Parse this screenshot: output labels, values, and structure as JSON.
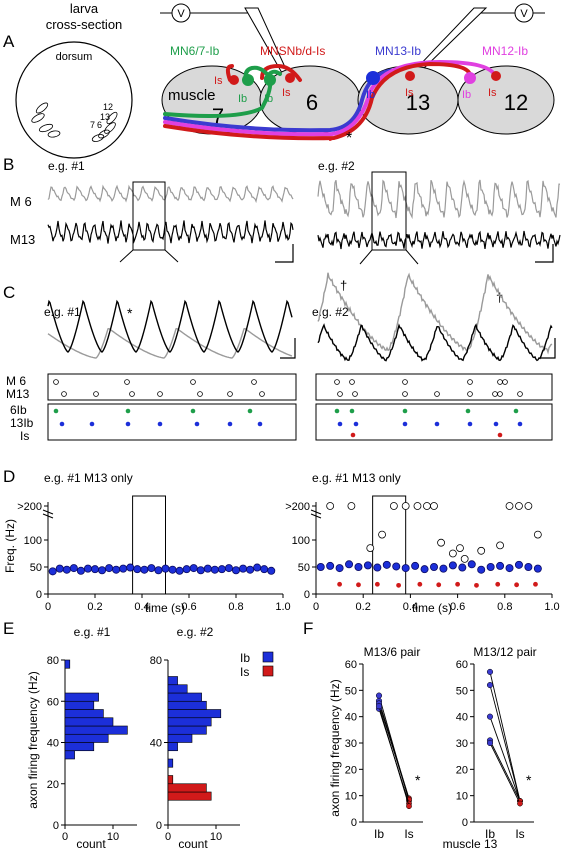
{
  "panels": {
    "A": "A",
    "B": "B",
    "C": "C",
    "D": "D",
    "E": "E",
    "F": "F"
  },
  "colors": {
    "ib": "#1c2fd9",
    "is": "#d11a1a",
    "mn67": "#1e9e4a",
    "mnsnb": "#d11a1a",
    "mn13": "#3b3bd0",
    "mn12": "#e040e0",
    "trace_gray": "#9a9a9a",
    "muscle": "#d9d9d9"
  },
  "panelA": {
    "larva_title_1": "larva",
    "larva_title_2": "cross-section",
    "dorsum": "dorsum",
    "larva_muscles": [
      "12",
      "13",
      "7",
      "6"
    ],
    "electrode": "V",
    "neurons": [
      {
        "label": "MN6/7-Ib",
        "color": "#1e9e4a"
      },
      {
        "label": "MNSNb/d-Is",
        "color": "#d11a1a"
      },
      {
        "label": "MN13-Ib",
        "color": "#3b3bd0"
      },
      {
        "label": "MN12-Ib",
        "color": "#e040e0"
      }
    ],
    "muscles": {
      "m7": "7",
      "m6": "6",
      "m13": "13",
      "m12": "12",
      "muscle_word": "muscle"
    },
    "terminals": {
      "is1": "Is",
      "ib7": "Ib",
      "ib6": "Ib",
      "is6": "Is",
      "ib13": "Ib",
      "is13": "Is",
      "ib12": "Ib",
      "is12": "Is"
    },
    "asterisk": "*"
  },
  "panelB": {
    "eg1": "e.g. #1",
    "eg2": "e.g. #2",
    "m6": "M  6",
    "m13": "M13"
  },
  "panelC": {
    "eg1": "e.g. #1",
    "eg2": "e.g. #2",
    "asterisk": "*",
    "dagger": "†",
    "rows1": [
      "M  6",
      "M13"
    ],
    "rows2": [
      "6Ib",
      "13Ib",
      "Is"
    ]
  },
  "panelD": {
    "left_title": "e.g. #1   M13 only",
    "right_title": "e.g. #1   M13 only",
    "ylabel": "Freq.  (Hz)",
    "xlabel": "time (s)",
    "yticks": [
      ">200",
      "100",
      "50",
      "0"
    ],
    "xticks": [
      "0",
      "0.2",
      "0.4",
      "0.6",
      "0.8",
      "1.0"
    ]
  },
  "panelE": {
    "title1": "e.g. #1",
    "title2": "e.g. #2",
    "ylabel": "axon firing frequency (Hz)",
    "xlabel": "count",
    "legend": [
      "Ib",
      "Is"
    ],
    "yticks": [
      "0",
      "20",
      "40",
      "60",
      "80"
    ],
    "xticks1": [
      "0",
      "10"
    ],
    "xticks2": [
      "0",
      "10"
    ],
    "yticks2": [
      "0",
      "40",
      "80"
    ]
  },
  "panelF": {
    "title1": "M13/6 pair",
    "title2": "M13/12 pair",
    "ylabel": "axon firing frequency (Hz)",
    "xticks": [
      "Ib",
      "Is"
    ],
    "xlabel": "muscle 13",
    "yticks": [
      "0",
      "10",
      "20",
      "30",
      "40",
      "50",
      "60"
    ],
    "asterisk": "*"
  },
  "chart_data": [
    {
      "type": "scatter",
      "title": "e.g. #1   M13 only",
      "xlabel": "time (s)",
      "ylabel": "Freq.  (Hz)",
      "xlim": [
        0,
        1.0
      ],
      "series": [
        {
          "name": "Ib",
          "x": [
            0.02,
            0.05,
            0.08,
            0.11,
            0.14,
            0.17,
            0.2,
            0.23,
            0.26,
            0.29,
            0.32,
            0.35,
            0.38,
            0.41,
            0.44,
            0.47,
            0.5,
            0.53,
            0.56,
            0.59,
            0.62,
            0.65,
            0.68,
            0.71,
            0.74,
            0.77,
            0.8,
            0.83,
            0.86,
            0.89,
            0.92,
            0.95
          ],
          "y": [
            42,
            47,
            45,
            48,
            43,
            47,
            46,
            44,
            48,
            45,
            47,
            49,
            46,
            45,
            48,
            44,
            47,
            45,
            43,
            46,
            48,
            44,
            47,
            45,
            46,
            48,
            44,
            47,
            45,
            49,
            46,
            43
          ]
        }
      ]
    },
    {
      "type": "scatter",
      "title": "e.g. #1   M13 only",
      "xlabel": "time (s)",
      "ylabel": "Freq.  (Hz)",
      "xlim": [
        0,
        1.0
      ],
      "series": [
        {
          "name": "Ib",
          "x": [
            0.02,
            0.06,
            0.1,
            0.14,
            0.18,
            0.22,
            0.26,
            0.3,
            0.34,
            0.38,
            0.42,
            0.46,
            0.5,
            0.54,
            0.58,
            0.62,
            0.66,
            0.7,
            0.74,
            0.78,
            0.82,
            0.86,
            0.9,
            0.94
          ],
          "y": [
            50,
            52,
            48,
            55,
            50,
            53,
            49,
            54,
            51,
            48,
            52,
            46,
            50,
            47,
            53,
            49,
            55,
            45,
            50,
            52,
            48,
            54,
            50,
            47
          ]
        },
        {
          "name": "Is",
          "x": [
            0.1,
            0.18,
            0.26,
            0.35,
            0.44,
            0.52,
            0.6,
            0.68,
            0.77,
            0.85,
            0.93
          ],
          "y": [
            18,
            17,
            18,
            16,
            18,
            17,
            18,
            16,
            18,
            17,
            18
          ]
        },
        {
          "name": "open",
          "x": [
            0.06,
            0.15,
            0.23,
            0.28,
            0.33,
            0.38,
            0.43,
            0.47,
            0.5,
            0.53,
            0.58,
            0.61,
            0.63,
            0.7,
            0.78,
            0.82,
            0.86,
            0.9,
            0.94
          ],
          "y": [
            210,
            210,
            85,
            110,
            210,
            210,
            210,
            200,
            210,
            95,
            75,
            85,
            65,
            80,
            90,
            210,
            210,
            210,
            110
          ]
        }
      ]
    },
    {
      "type": "bar",
      "title": "e.g. #1",
      "xlabel": "count",
      "ylabel": "axon firing frequency (Hz)",
      "series": [
        {
          "name": "Ib",
          "bins": [
            32,
            36,
            40,
            44,
            48,
            52,
            56,
            60,
            76
          ],
          "counts": [
            2,
            6,
            9,
            13,
            10,
            8,
            6,
            7,
            1
          ]
        }
      ]
    },
    {
      "type": "bar",
      "title": "e.g. #2",
      "xlabel": "count",
      "ylabel": "axon firing frequency (Hz)",
      "series": [
        {
          "name": "Ib",
          "bins": [
            28,
            36,
            40,
            44,
            48,
            52,
            56,
            60,
            64,
            68
          ],
          "counts": [
            1,
            2,
            5,
            8,
            9,
            11,
            8,
            7,
            4,
            2
          ]
        },
        {
          "name": "Is",
          "bins": [
            12,
            16,
            20
          ],
          "counts": [
            9,
            8,
            1
          ]
        }
      ]
    },
    {
      "type": "line",
      "title": "M13/6 pair",
      "ylabel": "axon firing frequency (Hz)",
      "categories": [
        "Ib",
        "Is"
      ],
      "ylim": [
        0,
        60
      ],
      "series": [
        {
          "values": [
            48,
            8
          ]
        },
        {
          "values": [
            46,
            9
          ]
        },
        {
          "values": [
            45,
            8.5
          ]
        },
        {
          "values": [
            43,
            7
          ]
        },
        {
          "values": [
            44,
            6
          ]
        }
      ]
    },
    {
      "type": "line",
      "title": "M13/12 pair",
      "ylabel": "axon firing frequency (Hz)",
      "categories": [
        "Ib",
        "Is"
      ],
      "ylim": [
        0,
        60
      ],
      "series": [
        {
          "values": [
            57,
            8
          ]
        },
        {
          "values": [
            52,
            8
          ]
        },
        {
          "values": [
            40,
            8
          ]
        },
        {
          "values": [
            31,
            8
          ]
        },
        {
          "values": [
            30,
            7
          ]
        }
      ]
    }
  ]
}
